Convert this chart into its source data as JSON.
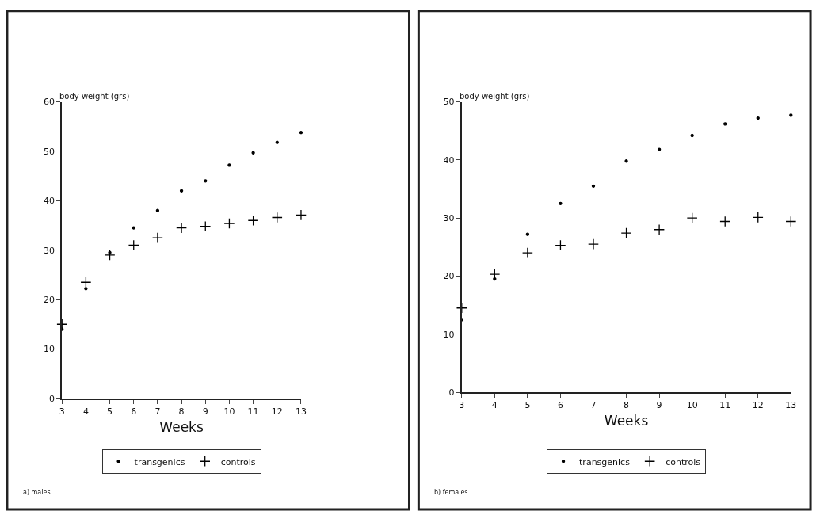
{
  "chart_data": [
    {
      "type": "scatter",
      "xlabel": "Weeks",
      "ylabel": "body weight (grs)",
      "annotations": [
        "a) males"
      ],
      "x": [
        3,
        4,
        5,
        6,
        7,
        8,
        9,
        10,
        11,
        12,
        13
      ],
      "xlim": [
        3,
        13
      ],
      "xticks": [
        3,
        4,
        5,
        6,
        7,
        8,
        9,
        10,
        11,
        12,
        13
      ],
      "ylim": [
        0,
        60
      ],
      "yticks": [
        0,
        10,
        20,
        30,
        40,
        50,
        60
      ],
      "legend": "bottom",
      "series": [
        {
          "name": "transgenics",
          "color": "#000000",
          "marker": "circle",
          "values": [
            14,
            22.2,
            29.5,
            34.5,
            38,
            42,
            44,
            47.2,
            49.7,
            51.8,
            53.8
          ]
        },
        {
          "name": "controls",
          "color": "#000000",
          "marker": "cross",
          "values": [
            15,
            23.5,
            29,
            31,
            32.5,
            34.5,
            34.8,
            35.4,
            36,
            36.6,
            37.1
          ]
        }
      ]
    },
    {
      "type": "scatter",
      "xlabel": "Weeks",
      "ylabel": "body weight (grs)",
      "annotations": [
        "b) females"
      ],
      "x": [
        3,
        4,
        5,
        6,
        7,
        8,
        9,
        10,
        11,
        12,
        13
      ],
      "xlim": [
        3,
        13
      ],
      "xticks": [
        3,
        4,
        5,
        6,
        7,
        8,
        9,
        10,
        11,
        12,
        13
      ],
      "ylim": [
        0,
        50
      ],
      "yticks": [
        0,
        10,
        20,
        30,
        40,
        50
      ],
      "legend": "bottom",
      "series": [
        {
          "name": "transgenics",
          "color": "#000000",
          "marker": "circle",
          "values": [
            12.5,
            19.5,
            27.2,
            32.5,
            35.5,
            39.8,
            41.8,
            44.2,
            46.2,
            47.2,
            47.7
          ]
        },
        {
          "name": "controls",
          "color": "#000000",
          "marker": "cross",
          "values": [
            14.5,
            20.3,
            24,
            25.3,
            25.5,
            27.4,
            28,
            30,
            29.4,
            30.1,
            29.4
          ]
        }
      ]
    }
  ]
}
